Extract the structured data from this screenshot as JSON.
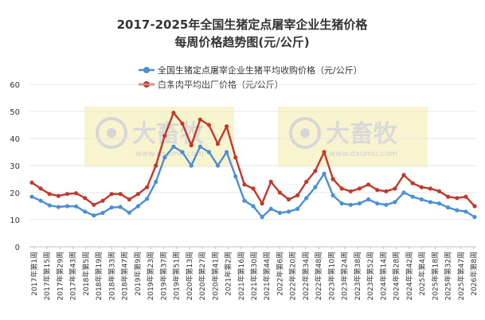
{
  "chart_data": {
    "type": "line",
    "title": "2017-2025年全国生猪定点屠宰企业生猪价格",
    "subtitle": "每周价格趋势图(元/公斤)",
    "xlabel": "",
    "ylabel": "",
    "ylim": [
      0,
      60
    ],
    "yticks": [
      0,
      10,
      20,
      30,
      40,
      50,
      60
    ],
    "grid": true,
    "legend_position": "top",
    "x_ticks": [
      "2017年第1周",
      "2017年第15周",
      "2017年第29周",
      "2017年第43周",
      "2018年第5周",
      "2018年第19周",
      "2018年第33周",
      "2018年第47周",
      "2019年第9周",
      "2019年第23周",
      "2019年第37周",
      "2019年第51周",
      "2020年第13周",
      "2020年第27周",
      "2020年第41周",
      "2021年第2周",
      "2021年第16周",
      "2021年第30周",
      "2021年第44周",
      "2022年第6周",
      "2022年第20周",
      "2022年第34周",
      "2022年第48周",
      "2023年第10周",
      "2023年第24周",
      "2023年第38周",
      "2023年第52周",
      "2024年第14周",
      "2024年第28周",
      "2024年第42周",
      "2025年第4周",
      "2025年第18周",
      "2025年第32周",
      "2025年第47周",
      "2026年第8周"
    ],
    "series": [
      {
        "name": "全国生猪定点屠宰企业生猪平均收购价格（元/公斤）",
        "color": "#4a8fd4",
        "values": [
          18.5,
          17.0,
          15.3,
          14.7,
          15.0,
          14.9,
          13.0,
          11.6,
          12.5,
          14.5,
          14.7,
          12.6,
          15.0,
          17.7,
          24.0,
          33.0,
          37.0,
          35.0,
          30.0,
          37.0,
          35.0,
          30.0,
          35.0,
          26.0,
          17.0,
          15.0,
          11.0,
          14.0,
          12.5,
          13.0,
          14.0,
          18.0,
          22.0,
          27.0,
          19.0,
          16.0,
          15.5,
          16.0,
          17.5,
          16.0,
          15.5,
          16.5,
          20.0,
          18.5,
          17.5,
          16.5,
          16.0,
          14.5,
          13.5,
          13.0,
          11.0
        ]
      },
      {
        "name": "白条肉平均出厂价格（元/公斤）",
        "color": "#c0392b",
        "values": [
          23.7,
          21.5,
          19.5,
          18.8,
          19.5,
          19.8,
          18.0,
          15.5,
          17.0,
          19.5,
          19.5,
          17.5,
          19.5,
          22.0,
          30.0,
          41.0,
          49.5,
          45.5,
          37.5,
          47.0,
          45.0,
          38.0,
          44.5,
          33.0,
          23.0,
          21.5,
          16.0,
          24.0,
          20.0,
          17.5,
          19.0,
          24.0,
          28.0,
          35.0,
          25.0,
          21.5,
          20.5,
          21.5,
          23.0,
          21.0,
          20.5,
          21.5,
          26.5,
          23.5,
          22.0,
          21.5,
          20.5,
          18.5,
          18.0,
          18.5,
          15.0
        ]
      }
    ]
  },
  "watermark": {
    "brand": "大畜牧",
    "site": "www.dxumu.com"
  }
}
